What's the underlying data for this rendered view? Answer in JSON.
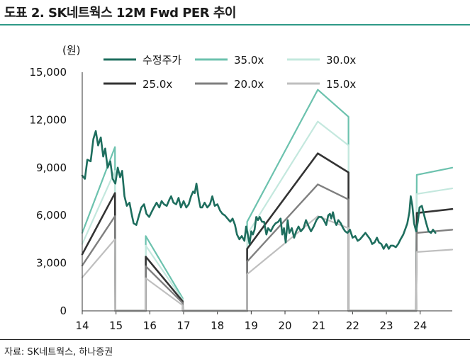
{
  "figure": {
    "title": "도표 2. SK네트웍스 12M Fwd PER 추이",
    "source": "자료: SK네트웍스, 하나증권"
  },
  "chart_data": {
    "type": "line",
    "title": "SK네트웍스 12M Fwd PER 추이",
    "y_unit_label": "(원)",
    "xlabel": "",
    "ylabel": "",
    "xlim": [
      14,
      24.95
    ],
    "ylim": [
      0,
      15000
    ],
    "x_ticks": [
      14,
      15,
      16,
      17,
      18,
      19,
      20,
      21,
      22,
      23,
      24
    ],
    "x_tick_labels": [
      "14",
      "15",
      "16",
      "17",
      "18",
      "19",
      "20",
      "21",
      "22",
      "23",
      "24"
    ],
    "y_ticks": [
      0,
      3000,
      6000,
      9000,
      12000,
      15000
    ],
    "y_tick_labels": [
      "0",
      "3,000",
      "6,000",
      "9,000",
      "12,000",
      "15,000"
    ],
    "grid": false,
    "legend_position": "top",
    "series": [
      {
        "name": "수정주가",
        "color": "#1e6e5e",
        "stroke_width": 2.6,
        "points": [
          [
            14.0,
            8500
          ],
          [
            14.08,
            8300
          ],
          [
            14.15,
            9500
          ],
          [
            14.25,
            9400
          ],
          [
            14.33,
            10800
          ],
          [
            14.4,
            11300
          ],
          [
            14.47,
            10400
          ],
          [
            14.55,
            10900
          ],
          [
            14.62,
            9700
          ],
          [
            14.68,
            10200
          ],
          [
            14.75,
            9000
          ],
          [
            14.83,
            9400
          ],
          [
            14.9,
            8300
          ],
          [
            14.98,
            8000
          ],
          [
            15.05,
            9000
          ],
          [
            15.12,
            8400
          ],
          [
            15.18,
            8800
          ],
          [
            15.25,
            7200
          ],
          [
            15.32,
            6600
          ],
          [
            15.4,
            6800
          ],
          [
            15.47,
            6000
          ],
          [
            15.52,
            5500
          ],
          [
            15.6,
            5400
          ],
          [
            15.68,
            6000
          ],
          [
            15.75,
            6500
          ],
          [
            15.83,
            6700
          ],
          [
            15.9,
            6100
          ],
          [
            15.98,
            5900
          ],
          [
            16.05,
            6200
          ],
          [
            16.12,
            6500
          ],
          [
            16.2,
            6800
          ],
          [
            16.28,
            6500
          ],
          [
            16.35,
            6900
          ],
          [
            16.42,
            6700
          ],
          [
            16.5,
            6600
          ],
          [
            16.58,
            7000
          ],
          [
            16.63,
            7200
          ],
          [
            16.7,
            6800
          ],
          [
            16.78,
            6700
          ],
          [
            16.85,
            7100
          ],
          [
            16.92,
            6500
          ],
          [
            17.0,
            6900
          ],
          [
            17.08,
            6500
          ],
          [
            17.15,
            6700
          ],
          [
            17.22,
            7200
          ],
          [
            17.28,
            7500
          ],
          [
            17.33,
            7400
          ],
          [
            17.38,
            8000
          ],
          [
            17.45,
            7000
          ],
          [
            17.5,
            6500
          ],
          [
            17.55,
            6500
          ],
          [
            17.62,
            6800
          ],
          [
            17.7,
            6500
          ],
          [
            17.78,
            6700
          ],
          [
            17.85,
            7200
          ],
          [
            17.92,
            6600
          ],
          [
            18.0,
            6700
          ],
          [
            18.08,
            6300
          ],
          [
            18.15,
            6100
          ],
          [
            18.22,
            6000
          ],
          [
            18.3,
            5800
          ],
          [
            18.38,
            5600
          ],
          [
            18.45,
            5800
          ],
          [
            18.52,
            5400
          ],
          [
            18.58,
            4800
          ],
          [
            18.65,
            4500
          ],
          [
            18.72,
            4700
          ],
          [
            18.8,
            4400
          ],
          [
            18.85,
            5300
          ],
          [
            18.9,
            4800
          ],
          [
            18.95,
            4200
          ],
          [
            19.0,
            5000
          ],
          [
            19.05,
            4800
          ],
          [
            19.1,
            5100
          ],
          [
            19.15,
            5900
          ],
          [
            19.2,
            5700
          ],
          [
            19.25,
            5900
          ],
          [
            19.32,
            5600
          ],
          [
            19.38,
            5600
          ],
          [
            19.45,
            4800
          ],
          [
            19.5,
            5200
          ],
          [
            19.58,
            5000
          ],
          [
            19.65,
            5300
          ],
          [
            19.72,
            5500
          ],
          [
            19.8,
            5600
          ],
          [
            19.87,
            5800
          ],
          [
            19.92,
            4800
          ],
          [
            19.97,
            5200
          ],
          [
            20.02,
            4300
          ],
          [
            20.08,
            5700
          ],
          [
            20.13,
            4900
          ],
          [
            20.2,
            5200
          ],
          [
            20.27,
            4600
          ],
          [
            20.33,
            5000
          ],
          [
            20.4,
            5300
          ],
          [
            20.47,
            5000
          ],
          [
            20.55,
            5200
          ],
          [
            20.62,
            5700
          ],
          [
            20.7,
            5300
          ],
          [
            20.77,
            5000
          ],
          [
            20.85,
            5300
          ],
          [
            20.93,
            5700
          ],
          [
            21.0,
            5900
          ],
          [
            21.08,
            5900
          ],
          [
            21.15,
            5700
          ],
          [
            21.22,
            5400
          ],
          [
            21.28,
            6000
          ],
          [
            21.33,
            6100
          ],
          [
            21.37,
            5800
          ],
          [
            21.42,
            6200
          ],
          [
            21.48,
            5600
          ],
          [
            21.52,
            5400
          ],
          [
            21.58,
            5700
          ],
          [
            21.65,
            5500
          ],
          [
            21.72,
            5200
          ],
          [
            21.78,
            5000
          ],
          [
            21.85,
            4900
          ],
          [
            21.92,
            5100
          ],
          [
            22.0,
            4600
          ],
          [
            22.08,
            4700
          ],
          [
            22.15,
            4400
          ],
          [
            22.22,
            4500
          ],
          [
            22.3,
            4700
          ],
          [
            22.38,
            4900
          ],
          [
            22.45,
            4700
          ],
          [
            22.52,
            4500
          ],
          [
            22.58,
            4200
          ],
          [
            22.65,
            4300
          ],
          [
            22.72,
            4600
          ],
          [
            22.78,
            4300
          ],
          [
            22.85,
            4200
          ],
          [
            22.92,
            3900
          ],
          [
            23.0,
            4200
          ],
          [
            23.07,
            3900
          ],
          [
            23.13,
            4100
          ],
          [
            23.2,
            4100
          ],
          [
            23.28,
            4000
          ],
          [
            23.35,
            4200
          ],
          [
            23.42,
            4500
          ],
          [
            23.5,
            4800
          ],
          [
            23.57,
            5200
          ],
          [
            23.62,
            5500
          ],
          [
            23.68,
            6200
          ],
          [
            23.72,
            7200
          ],
          [
            23.77,
            6600
          ],
          [
            23.82,
            5500
          ],
          [
            23.88,
            5000
          ],
          [
            23.93,
            5600
          ],
          [
            23.98,
            6500
          ],
          [
            24.05,
            6600
          ],
          [
            24.12,
            6000
          ],
          [
            24.18,
            5500
          ],
          [
            24.25,
            5000
          ],
          [
            24.32,
            4900
          ],
          [
            24.38,
            5100
          ],
          [
            24.45,
            4900
          ]
        ]
      },
      {
        "name": "35.0x",
        "color": "#6cc2ae",
        "stroke_width": 2.2,
        "points": [
          [
            14.0,
            4900
          ],
          [
            14.97,
            10300
          ],
          [
            14.98,
            0
          ],
          [
            15.88,
            0
          ],
          [
            15.88,
            4700
          ],
          [
            16.97,
            800
          ],
          [
            16.98,
            0
          ],
          [
            18.88,
            0
          ],
          [
            18.88,
            5600
          ],
          [
            20.97,
            13900
          ],
          [
            21.88,
            12200
          ],
          [
            21.88,
            0
          ],
          [
            23.88,
            0
          ],
          [
            23.9,
            8550
          ],
          [
            24.95,
            9000
          ]
        ]
      },
      {
        "name": "30.0x",
        "color": "#c4e8de",
        "stroke_width": 2.2,
        "points": [
          [
            14.0,
            4200
          ],
          [
            14.97,
            8800
          ],
          [
            14.98,
            0
          ],
          [
            15.88,
            0
          ],
          [
            15.88,
            4100
          ],
          [
            16.97,
            700
          ],
          [
            16.98,
            0
          ],
          [
            18.88,
            0
          ],
          [
            18.88,
            4800
          ],
          [
            20.97,
            11900
          ],
          [
            21.88,
            10400
          ],
          [
            21.88,
            0
          ],
          [
            23.88,
            0
          ],
          [
            23.9,
            7350
          ],
          [
            24.95,
            7700
          ]
        ]
      },
      {
        "name": "25.0x",
        "color": "#333333",
        "stroke_width": 2.6,
        "points": [
          [
            14.0,
            3550
          ],
          [
            14.97,
            7400
          ],
          [
            14.98,
            0
          ],
          [
            15.88,
            0
          ],
          [
            15.88,
            3400
          ],
          [
            16.97,
            600
          ],
          [
            16.98,
            0
          ],
          [
            18.88,
            0
          ],
          [
            18.88,
            3900
          ],
          [
            20.97,
            9900
          ],
          [
            21.88,
            8700
          ],
          [
            21.88,
            0
          ],
          [
            23.88,
            0
          ],
          [
            23.9,
            6150
          ],
          [
            24.95,
            6400
          ]
        ]
      },
      {
        "name": "20.0x",
        "color": "#7f7f7f",
        "stroke_width": 2.4,
        "points": [
          [
            14.0,
            2850
          ],
          [
            14.97,
            5950
          ],
          [
            14.98,
            0
          ],
          [
            15.88,
            0
          ],
          [
            15.88,
            2800
          ],
          [
            16.97,
            500
          ],
          [
            16.98,
            0
          ],
          [
            18.88,
            0
          ],
          [
            18.88,
            3100
          ],
          [
            20.97,
            7950
          ],
          [
            21.88,
            7000
          ],
          [
            21.88,
            0
          ],
          [
            23.88,
            0
          ],
          [
            23.9,
            4900
          ],
          [
            24.95,
            5100
          ]
        ]
      },
      {
        "name": "15.0x",
        "color": "#bfbfbf",
        "stroke_width": 2.2,
        "points": [
          [
            14.0,
            2100
          ],
          [
            14.97,
            4500
          ],
          [
            14.98,
            0
          ],
          [
            15.88,
            0
          ],
          [
            15.88,
            2050
          ],
          [
            16.97,
            350
          ],
          [
            16.98,
            0
          ],
          [
            18.88,
            0
          ],
          [
            18.88,
            2300
          ],
          [
            20.97,
            5950
          ],
          [
            21.88,
            5200
          ],
          [
            21.88,
            0
          ],
          [
            23.88,
            0
          ],
          [
            23.9,
            3700
          ],
          [
            24.95,
            3850
          ]
        ]
      }
    ]
  }
}
